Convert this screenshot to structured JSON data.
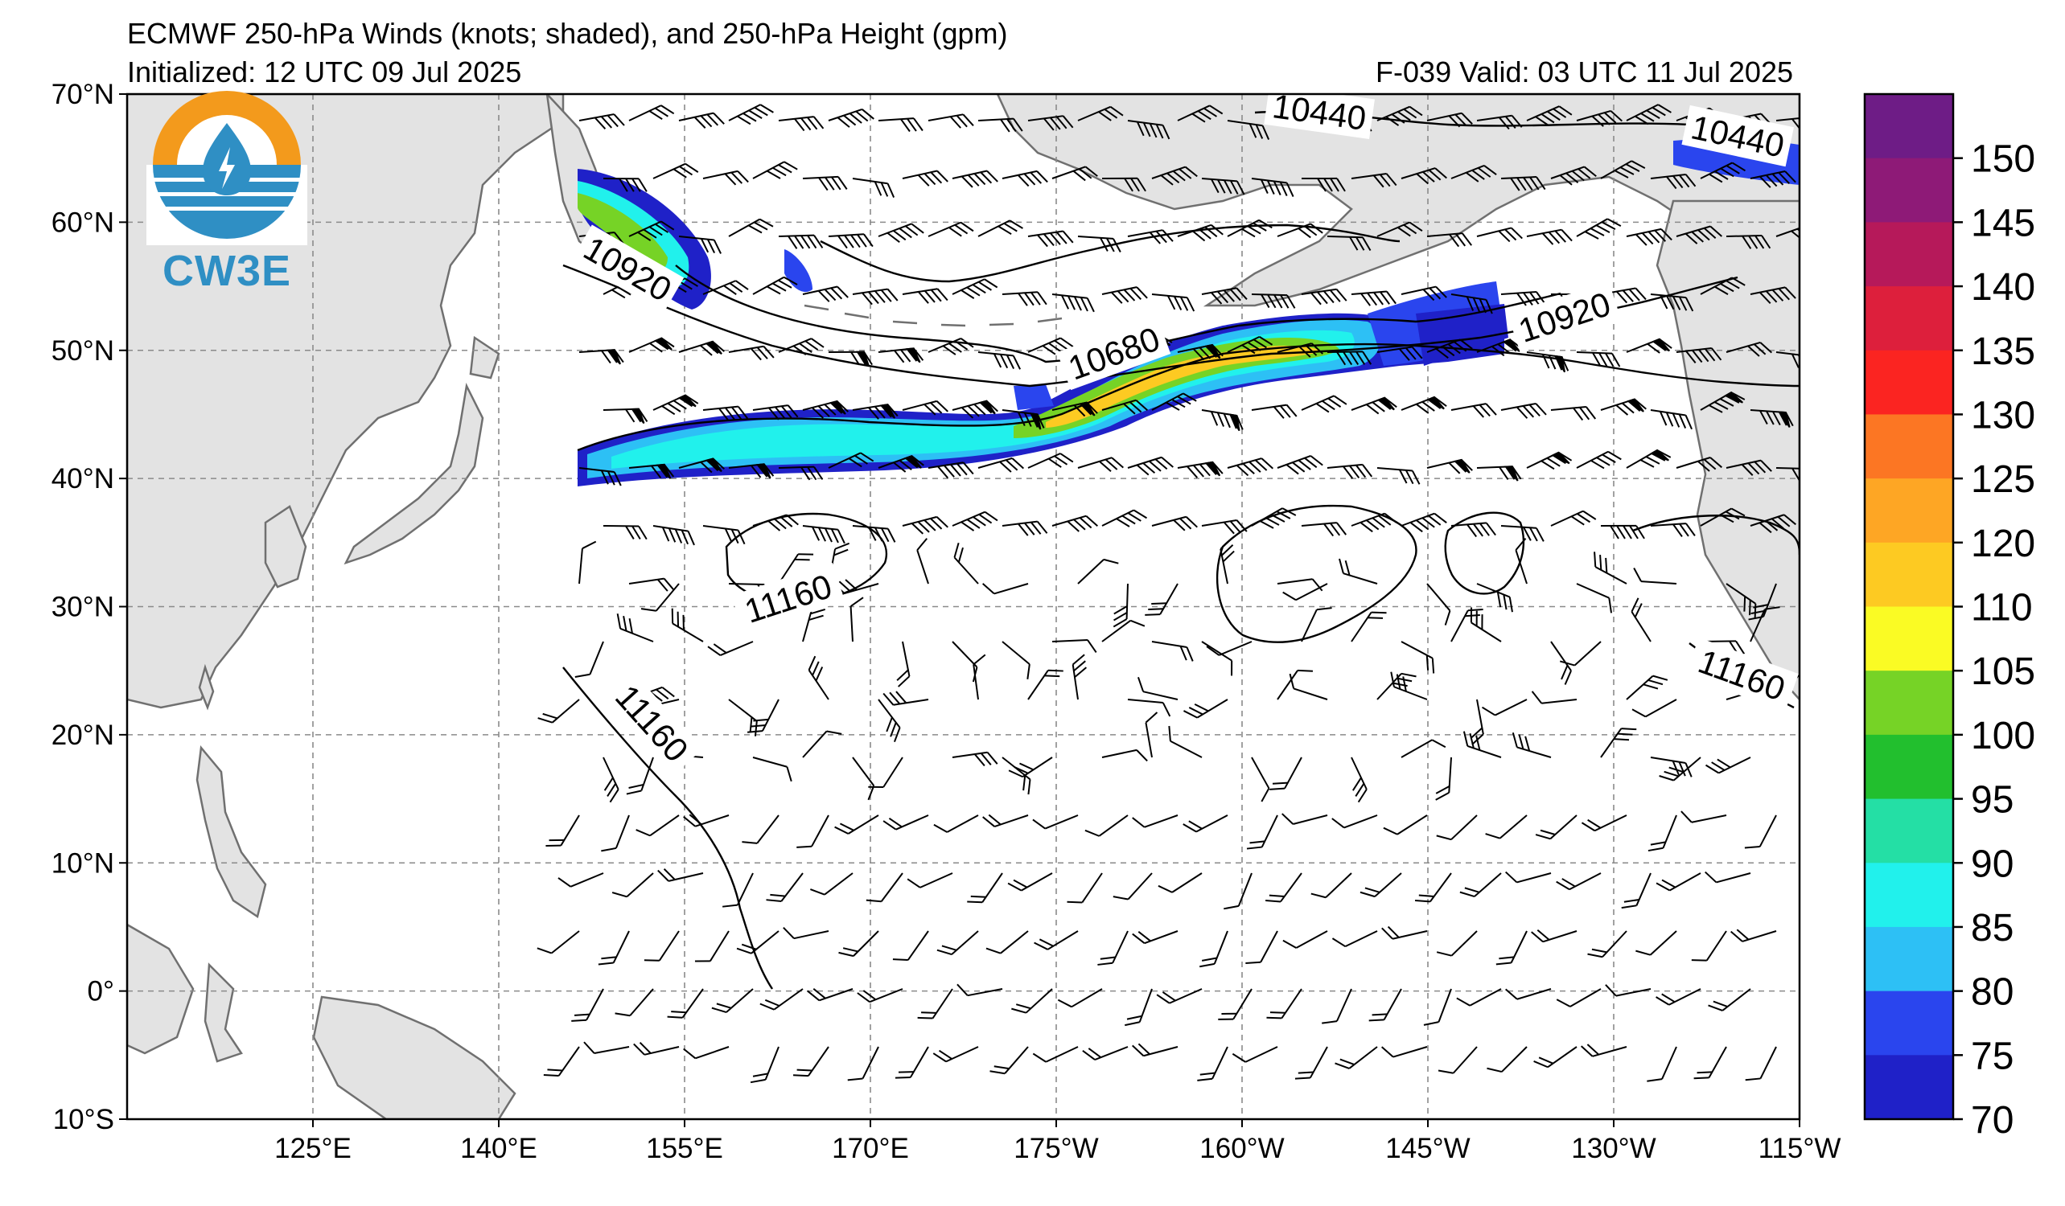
{
  "header": {
    "title": "ECMWF 250-hPa Winds (knots; shaded), and 250-hPa Height (gpm)",
    "initialized": "Initialized: 12 UTC 09 Jul 2025",
    "valid": "F-039  Valid: 03 UTC 11 Jul 2025"
  },
  "logo": {
    "text": "CW3E",
    "icon": "cw3e-water-drop-lightning-logo"
  },
  "map": {
    "projection": "equirectangular",
    "lon_range": [
      110,
      245
    ],
    "lat_range": [
      -10,
      70
    ],
    "land_color": "#e3e3e3",
    "ocean_color": "#ffffff",
    "lat_labels": [
      "70°N",
      "60°N",
      "50°N",
      "40°N",
      "30°N",
      "20°N",
      "10°N",
      "0°",
      "10°S"
    ],
    "lat_values": [
      70,
      60,
      50,
      40,
      30,
      20,
      10,
      0,
      -10
    ],
    "lon_labels": [
      "125°E",
      "140°E",
      "155°E",
      "170°E",
      "175°W",
      "160°W",
      "145°W",
      "130°W",
      "115°W"
    ],
    "lon_values": [
      125,
      140,
      155,
      170,
      185,
      200,
      215,
      230,
      245
    ]
  },
  "contours": [
    {
      "label": "10440",
      "value": 10440
    },
    {
      "label": "10440",
      "value": 10440
    },
    {
      "label": "10920",
      "value": 10920
    },
    {
      "label": "10920",
      "value": 10920
    },
    {
      "label": "10680",
      "value": 10680
    },
    {
      "label": "11160",
      "value": 11160
    },
    {
      "label": "11160",
      "value": 11160
    },
    {
      "label": "11160",
      "value": 11160
    }
  ],
  "colorbar": {
    "units": "knots",
    "ticks": [
      "70",
      "75",
      "80",
      "85",
      "90",
      "95",
      "100",
      "105",
      "110",
      "120",
      "125",
      "130",
      "135",
      "140",
      "145",
      "150"
    ],
    "colors": [
      "#1f21c8",
      "#2a45ee",
      "#2dc0f5",
      "#21f1ec",
      "#24dfa5",
      "#22bf2e",
      "#76d326",
      "#fafb24",
      "#fdca22",
      "#fea624",
      "#fc7623",
      "#fb2421",
      "#dd1f3c",
      "#b6195a",
      "#8e1a77",
      "#6e1c86"
    ]
  }
}
